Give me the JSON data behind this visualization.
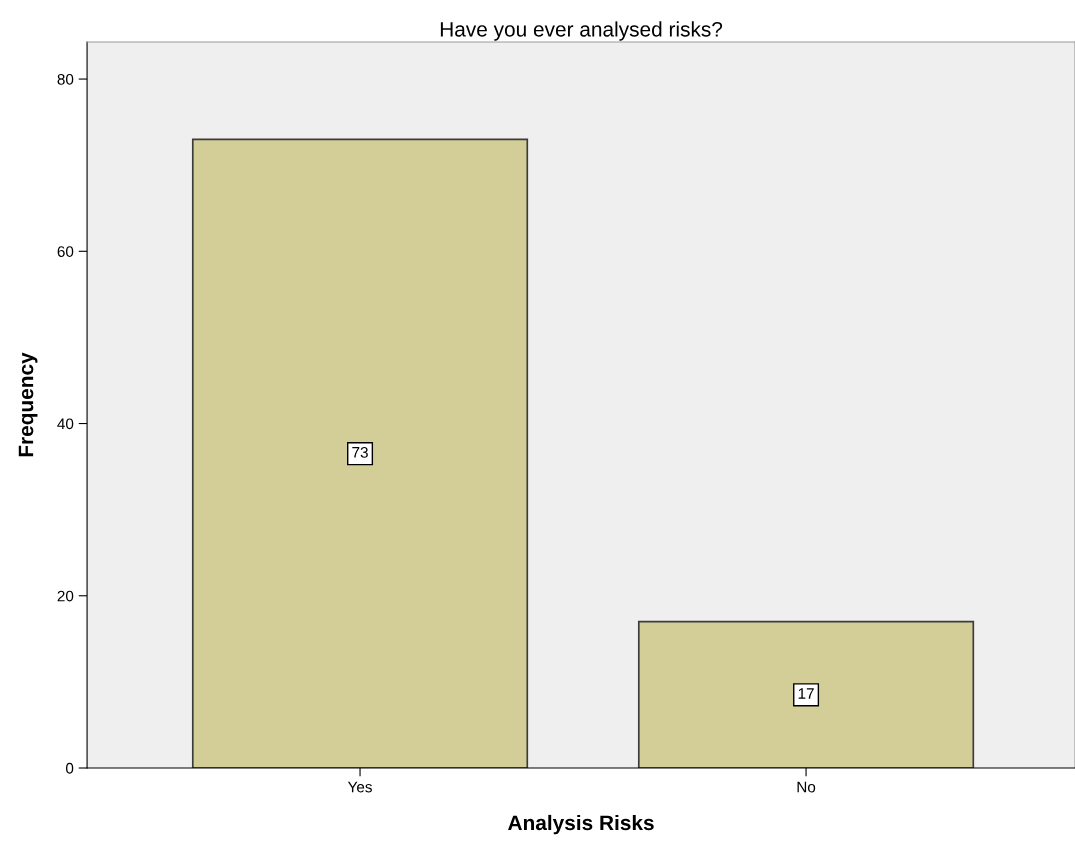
{
  "chart_data": {
    "type": "bar",
    "title": "Have you ever analysed risks?",
    "xlabel": "Analysis Risks",
    "ylabel": "Frequency",
    "categories": [
      "Yes",
      "No"
    ],
    "values": [
      73,
      17
    ],
    "color": "#d3ce97",
    "ylim": [
      0,
      84.3
    ],
    "yticks": [
      0,
      20,
      40,
      60,
      80
    ],
    "grid": false,
    "data_labels": true
  }
}
